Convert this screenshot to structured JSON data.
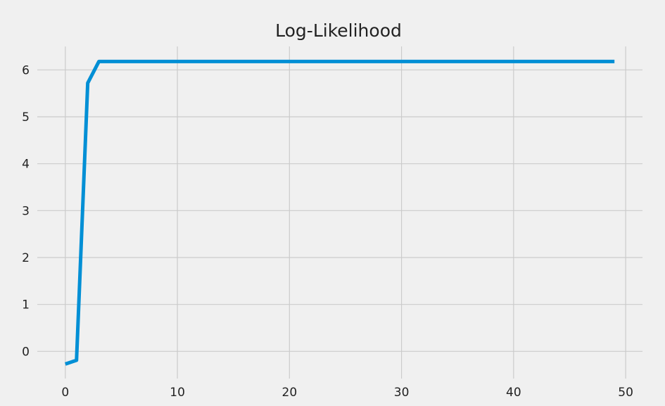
{
  "chart_data": {
    "type": "line",
    "title": "Log-Likelihood",
    "xlabel": "",
    "ylabel": "",
    "xlim": [
      -2.5,
      51.5
    ],
    "ylim": [
      -0.58,
      6.5
    ],
    "xticks": [
      0,
      10,
      20,
      30,
      40,
      50
    ],
    "yticks": [
      0,
      1,
      2,
      3,
      4,
      5,
      6
    ],
    "grid": true,
    "legend": "none",
    "colors": {
      "background": "#f0f0f0",
      "grid": "#cbcbcb",
      "text": "#222222"
    },
    "series": [
      {
        "color": "#008fd5",
        "x": [
          0,
          1,
          2,
          3,
          4,
          5,
          6,
          7,
          8,
          9,
          10,
          11,
          12,
          13,
          14,
          15,
          16,
          17,
          18,
          19,
          20,
          21,
          22,
          23,
          24,
          25,
          26,
          27,
          28,
          29,
          30,
          31,
          32,
          33,
          34,
          35,
          36,
          37,
          38,
          39,
          40,
          41,
          42,
          43,
          44,
          45,
          46,
          47,
          48,
          49
        ],
        "y": [
          -0.27,
          -0.19,
          5.72,
          6.18,
          6.18,
          6.18,
          6.18,
          6.18,
          6.18,
          6.18,
          6.18,
          6.18,
          6.18,
          6.18,
          6.18,
          6.18,
          6.18,
          6.18,
          6.18,
          6.18,
          6.18,
          6.18,
          6.18,
          6.18,
          6.18,
          6.18,
          6.18,
          6.18,
          6.18,
          6.18,
          6.18,
          6.18,
          6.18,
          6.18,
          6.18,
          6.18,
          6.18,
          6.18,
          6.18,
          6.18,
          6.18,
          6.18,
          6.18,
          6.18,
          6.18,
          6.18,
          6.18,
          6.18,
          6.18,
          6.18
        ]
      }
    ]
  }
}
